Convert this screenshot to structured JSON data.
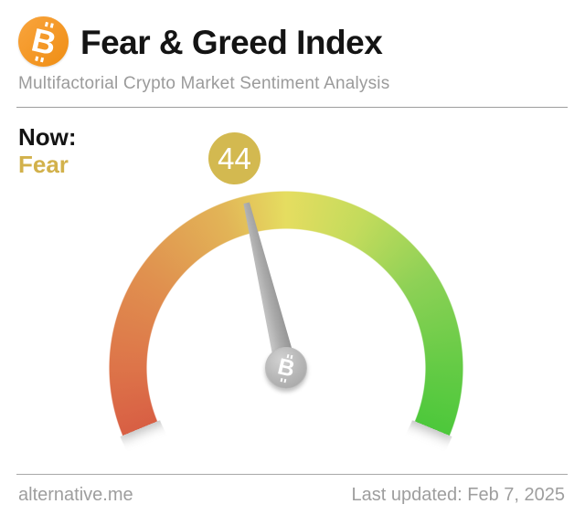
{
  "header": {
    "title": "Fear & Greed Index",
    "subtitle": "Multifactorial Crypto Market Sentiment Analysis",
    "logo": {
      "icon": "bitcoin-icon",
      "glyph": "B",
      "color_top": "#f9a43d",
      "color_bottom": "#ef8e14"
    }
  },
  "now": {
    "label": "Now:",
    "sentiment": "Fear",
    "sentiment_color": "#d2b14b"
  },
  "badge": {
    "value": "44",
    "bg_color": "#d3b950",
    "text_color": "#ffffff"
  },
  "chart_data": {
    "type": "gauge",
    "title": "Fear & Greed Index",
    "value": 44,
    "min": 0,
    "max": 100,
    "value_label": "Fear",
    "sweep_deg": 225,
    "color_stops": [
      {
        "pos": 0.0,
        "color": "#d85f44"
      },
      {
        "pos": 0.1,
        "color": "#dd7449"
      },
      {
        "pos": 0.25,
        "color": "#e0914f"
      },
      {
        "pos": 0.4,
        "color": "#e2b457"
      },
      {
        "pos": 0.5,
        "color": "#e5dd60"
      },
      {
        "pos": 0.62,
        "color": "#c3db5c"
      },
      {
        "pos": 0.75,
        "color": "#8ed156"
      },
      {
        "pos": 0.9,
        "color": "#64cb45"
      },
      {
        "pos": 1.0,
        "color": "#4dc83b"
      }
    ],
    "needle_color": "#a8a8a8",
    "hub_icon": {
      "icon": "bitcoin-icon",
      "glyph": "B"
    }
  },
  "footer": {
    "site": "alternative.me",
    "last_updated": "Last updated: Feb 7, 2025"
  }
}
